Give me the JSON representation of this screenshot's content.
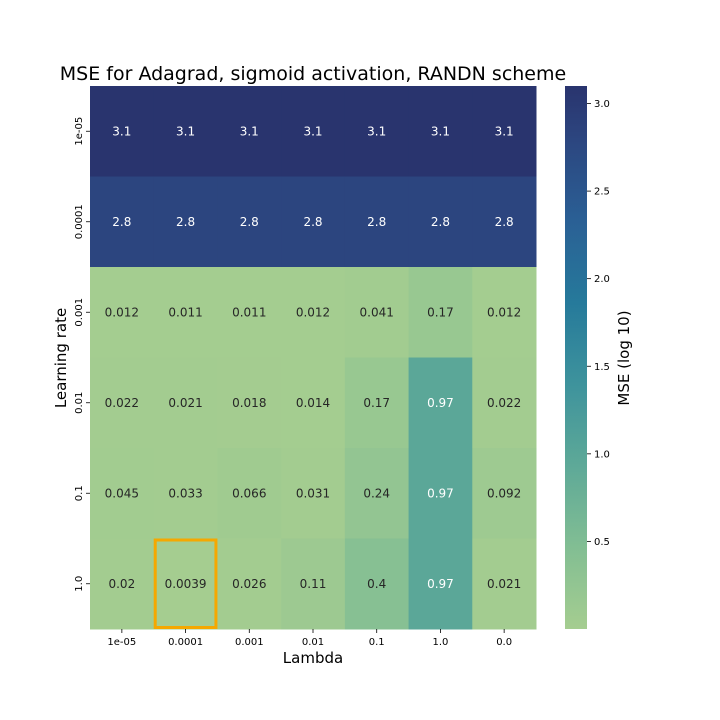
{
  "chart_data": {
    "type": "heatmap",
    "title": "MSE for Adagrad, sigmoid activation, RANDN scheme",
    "xlabel": "Lambda",
    "ylabel": "Learning rate",
    "x_categories": [
      "1e-05",
      "0.0001",
      "0.001",
      "0.01",
      "0.1",
      "1.0",
      "0.0"
    ],
    "y_categories": [
      "1e-05",
      "0.0001",
      "0.001",
      "0.01",
      "0.1",
      "1.0"
    ],
    "values": [
      [
        3.1,
        3.1,
        3.1,
        3.1,
        3.1,
        3.1,
        3.1
      ],
      [
        2.8,
        2.8,
        2.8,
        2.8,
        2.8,
        2.8,
        2.8
      ],
      [
        0.012,
        0.011,
        0.011,
        0.012,
        0.041,
        0.17,
        0.012
      ],
      [
        0.022,
        0.021,
        0.018,
        0.014,
        0.17,
        0.97,
        0.022
      ],
      [
        0.045,
        0.033,
        0.066,
        0.031,
        0.24,
        0.97,
        0.092
      ],
      [
        0.02,
        0.0039,
        0.026,
        0.11,
        0.4,
        0.97,
        0.021
      ]
    ],
    "cell_labels": [
      [
        "3.1",
        "3.1",
        "3.1",
        "3.1",
        "3.1",
        "3.1",
        "3.1"
      ],
      [
        "2.8",
        "2.8",
        "2.8",
        "2.8",
        "2.8",
        "2.8",
        "2.8"
      ],
      [
        "0.012",
        "0.011",
        "0.011",
        "0.012",
        "0.041",
        "0.17",
        "0.012"
      ],
      [
        "0.022",
        "0.021",
        "0.018",
        "0.014",
        "0.17",
        "0.97",
        "0.022"
      ],
      [
        "0.045",
        "0.033",
        "0.066",
        "0.031",
        "0.24",
        "0.97",
        "0.092"
      ],
      [
        "0.02",
        "0.0039",
        "0.026",
        "0.11",
        "0.4",
        "0.97",
        "0.021"
      ]
    ],
    "highlight_cell": {
      "row": 5,
      "col": 1,
      "color": "#f5a800"
    },
    "colorbar": {
      "label": "MSE (log 10)",
      "range": [
        0,
        3.1
      ],
      "ticks": [
        0.5,
        1.0,
        1.5,
        2.0,
        2.5,
        3.0
      ],
      "tick_labels": [
        "0.5",
        "1.0",
        "1.5",
        "2.0",
        "2.5",
        "3.0"
      ],
      "colormap": "crest"
    }
  }
}
